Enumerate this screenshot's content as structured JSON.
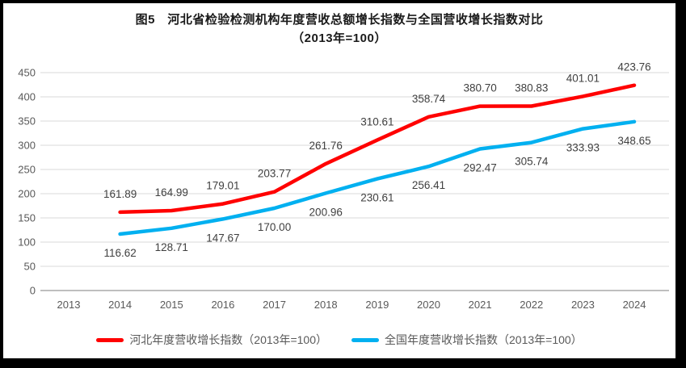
{
  "title": {
    "line1": "图5　河北省检验检测机构年度营收总额增长指数与全国营收增长指数对比",
    "line2": "（2013年=100）"
  },
  "chart_data": {
    "type": "line",
    "categories": [
      "2013",
      "2014",
      "2015",
      "2016",
      "2017",
      "2018",
      "2019",
      "2020",
      "2021",
      "2022",
      "2023",
      "2024"
    ],
    "series": [
      {
        "name": "河北年度营收增长指数（2013年=100）",
        "color": "#FF0000",
        "label_position": "above",
        "values": [
          null,
          161.89,
          164.99,
          179.01,
          203.77,
          261.76,
          310.61,
          358.74,
          380.7,
          380.83,
          401.01,
          423.76
        ]
      },
      {
        "name": "全国年度营收增长指数（2013年=100）",
        "color": "#00B0F0",
        "label_position": "below",
        "values": [
          null,
          116.62,
          128.71,
          147.67,
          170.0,
          200.96,
          230.61,
          256.41,
          292.47,
          305.74,
          333.93,
          348.65
        ]
      }
    ],
    "ylim": [
      0,
      450
    ],
    "yticks": [
      0,
      50,
      100,
      150,
      200,
      250,
      300,
      350,
      400,
      450
    ],
    "grid": true,
    "legend_position": "bottom",
    "data_label_decimals": 2,
    "colors": {
      "gridline": "#D9D9D9",
      "axis_line": "#BFBFBF",
      "tick_label": "#595959",
      "data_label": "#3F3F3F"
    }
  }
}
